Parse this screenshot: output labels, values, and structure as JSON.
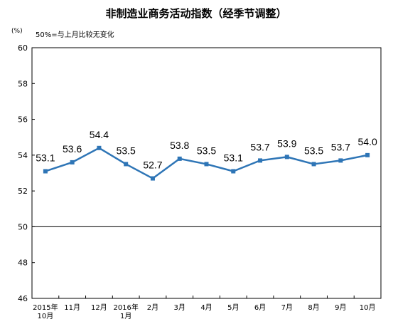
{
  "chart_data": {
    "type": "line",
    "title": "非制造业商务活动指数（经季节调整）",
    "unit_label": "(%)",
    "note": "50%=与上月比较无变化",
    "ylim": [
      46,
      60
    ],
    "yticks": [
      "60",
      "58",
      "56",
      "54",
      "52",
      "50",
      "48",
      "46"
    ],
    "reference_line": 50,
    "grid": false,
    "categories": [
      [
        "2015年",
        "10月"
      ],
      [
        "11月"
      ],
      [
        "12月"
      ],
      [
        "2016年",
        "1月"
      ],
      [
        "2月"
      ],
      [
        "3月"
      ],
      [
        "4月"
      ],
      [
        "5月"
      ],
      [
        "6月"
      ],
      [
        "7月"
      ],
      [
        "8月"
      ],
      [
        "9月"
      ],
      [
        "10月"
      ]
    ],
    "values": [
      53.1,
      53.6,
      54.4,
      53.5,
      52.7,
      53.8,
      53.5,
      53.1,
      53.7,
      53.9,
      53.5,
      53.7,
      54.0
    ],
    "value_labels": [
      "53.1",
      "53.6",
      "54.4",
      "53.5",
      "52.7",
      "53.8",
      "53.5",
      "53.1",
      "53.7",
      "53.9",
      "53.5",
      "53.7",
      "54.0"
    ],
    "line_color": "#2e75b6"
  }
}
